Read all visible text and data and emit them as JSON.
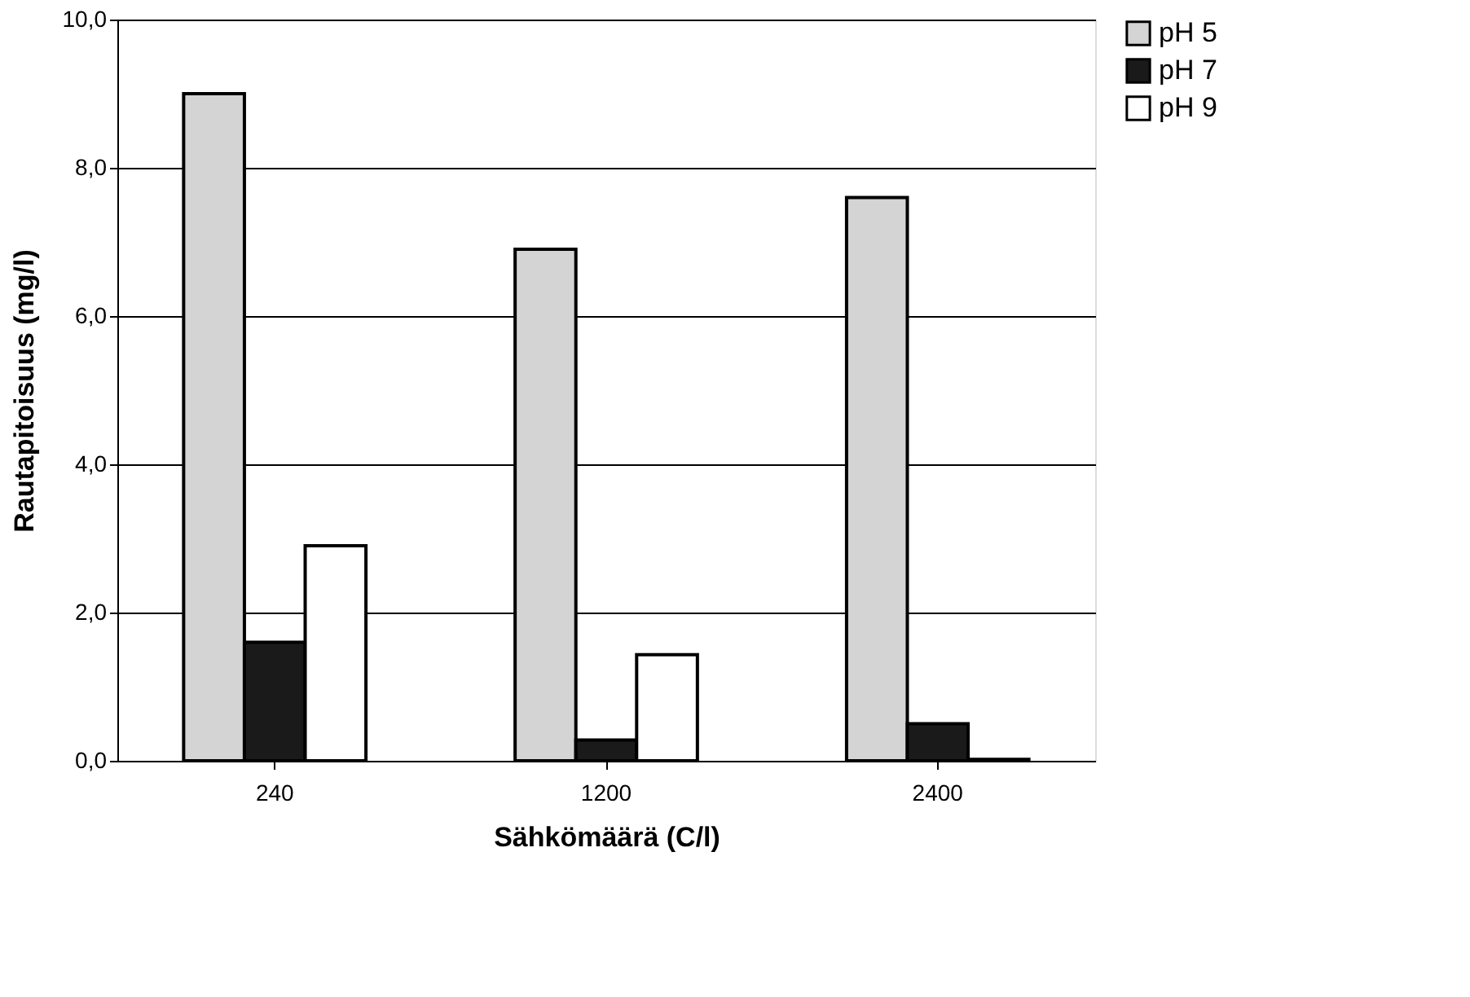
{
  "chart_data": {
    "type": "bar",
    "xlabel": "Sähkömäärä (C/l)",
    "ylabel": "Rautapitoisuus (mg/l)",
    "categories": [
      "240",
      "1200",
      "2400"
    ],
    "series": [
      {
        "name": "pH 5",
        "color": "#d4d4d4",
        "values": [
          9.0,
          6.9,
          7.6
        ]
      },
      {
        "name": "pH 7",
        "color": "#1a1a1a",
        "values": [
          1.6,
          0.28,
          0.5
        ]
      },
      {
        "name": "pH 9",
        "color": "#ffffff",
        "values": [
          2.9,
          1.43,
          0.02
        ]
      }
    ],
    "ylim": [
      0,
      10
    ],
    "yticks": [
      {
        "value": 0,
        "label": "0,0"
      },
      {
        "value": 2,
        "label": "2,0"
      },
      {
        "value": 4,
        "label": "4,0"
      },
      {
        "value": 6,
        "label": "6,0"
      },
      {
        "value": 8,
        "label": "8,0"
      },
      {
        "value": 10,
        "label": "10,0"
      }
    ],
    "grid": "y",
    "legend": "right"
  }
}
